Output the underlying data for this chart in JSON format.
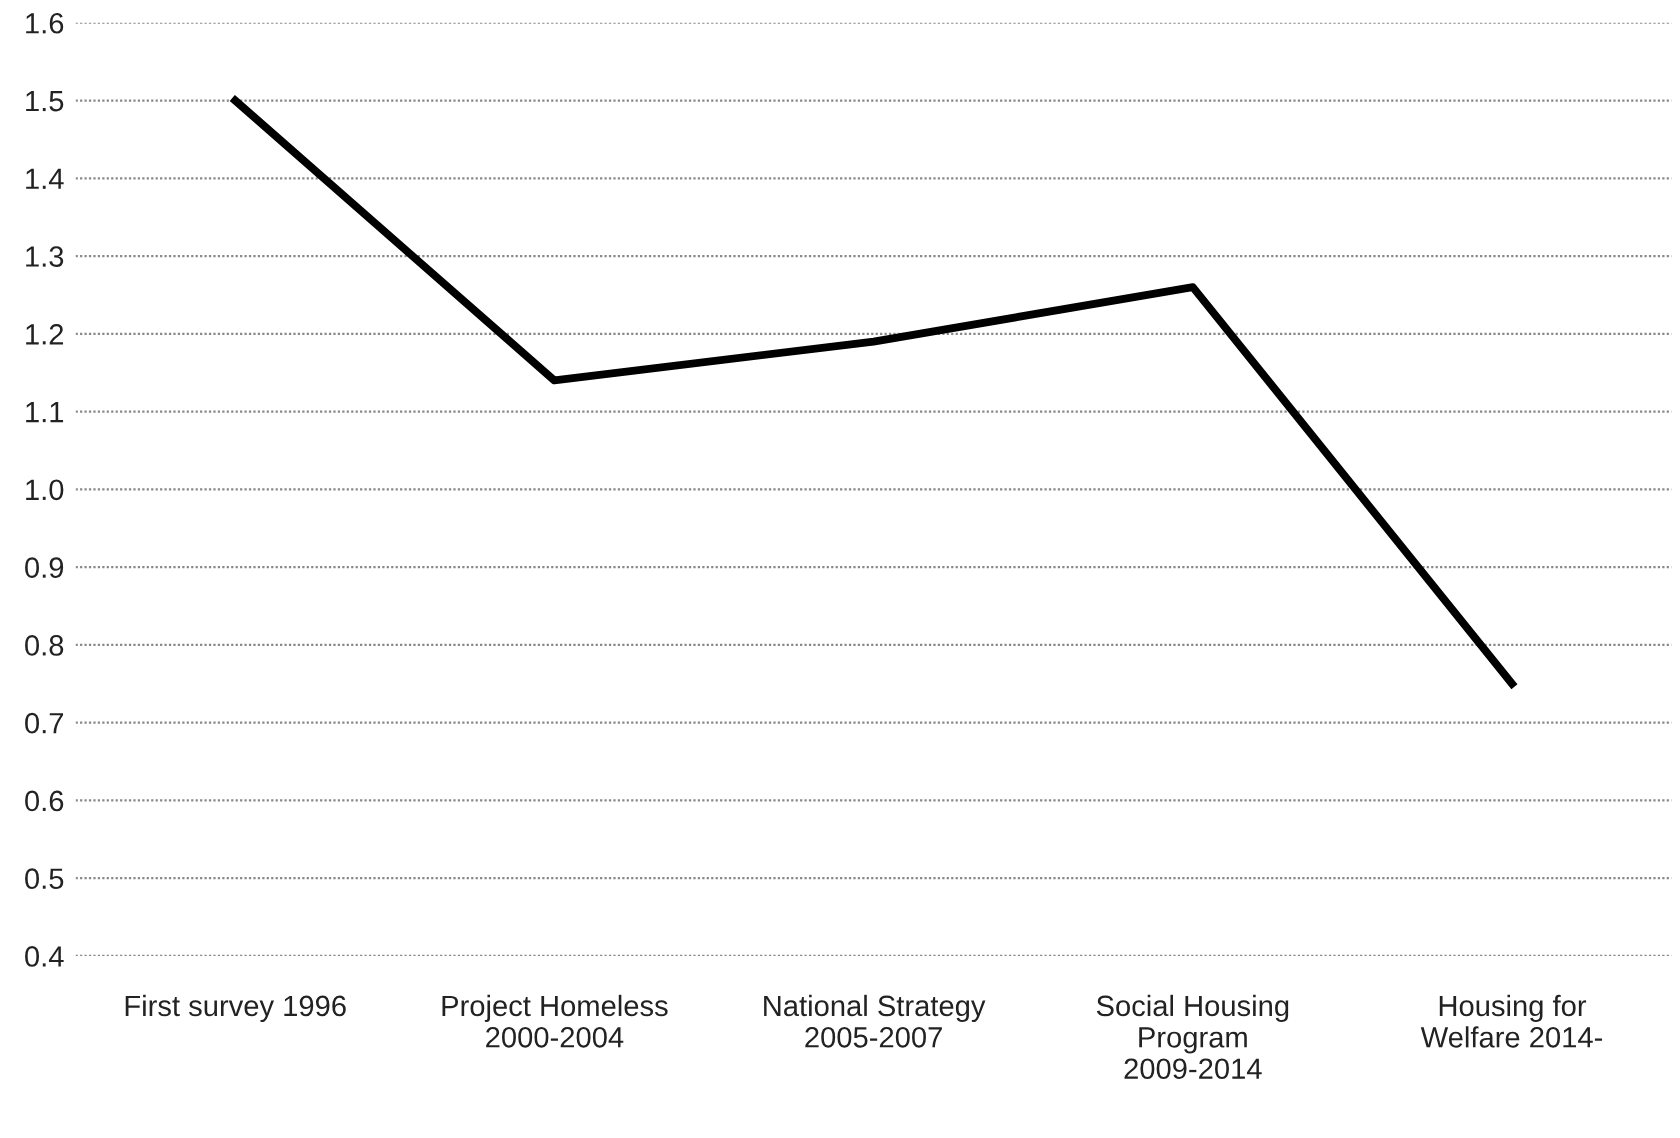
{
  "chart_data": {
    "type": "line",
    "categories": [
      "First survey 1996",
      "Project Homeless\n2000-2004",
      "National Strategy\n2005-2007",
      "Social Housing\nProgram\n2009-2014",
      "Housing for\nWelfare 2014-"
    ],
    "series": [
      {
        "color": "#000000",
        "values": [
          1.5,
          1.14,
          1.19,
          1.26,
          0.75
        ]
      }
    ],
    "ylim": [
      0.4,
      1.6
    ],
    "yticks": [
      {
        "value": 0.4,
        "label": "0.4"
      },
      {
        "value": 0.5,
        "label": "0.5"
      },
      {
        "value": 0.6,
        "label": "0.6"
      },
      {
        "value": 0.7,
        "label": "0.7"
      },
      {
        "value": 0.8,
        "label": "0.8"
      },
      {
        "value": 0.9,
        "label": "0.9"
      },
      {
        "value": 1.0,
        "label": "1.0"
      },
      {
        "value": 1.1,
        "label": "1.1"
      },
      {
        "value": 1.2,
        "label": "1.2"
      },
      {
        "value": 1.3,
        "label": "1.3"
      },
      {
        "value": 1.4,
        "label": "1.4"
      },
      {
        "value": 1.5,
        "label": "1.5"
      },
      {
        "value": 1.6,
        "label": "1.6"
      }
    ],
    "grid": "y",
    "line_style": "solid",
    "marker": "none"
  }
}
